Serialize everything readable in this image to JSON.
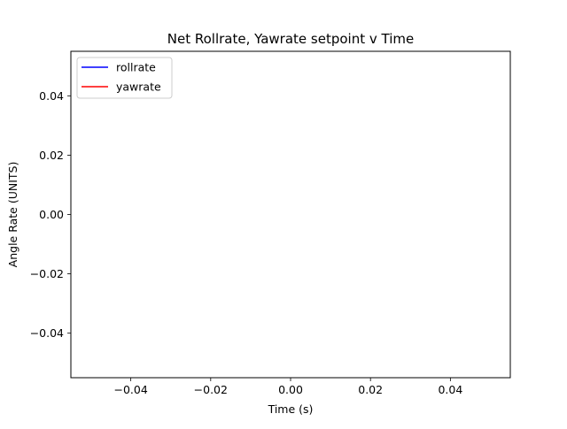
{
  "chart_data": {
    "type": "line",
    "title": "Net Rollrate, Yawrate setpoint v Time",
    "xlabel": "Time (s)",
    "ylabel": "Angle Rate (UNITS)",
    "xlim": [
      -0.055,
      0.055
    ],
    "ylim": [
      -0.055,
      0.055
    ],
    "xticks": [
      -0.04,
      -0.02,
      0.0,
      0.02,
      0.04
    ],
    "yticks": [
      -0.04,
      -0.02,
      0.0,
      0.02,
      0.04
    ],
    "xtick_labels": [
      "−0.04",
      "−0.02",
      "0.00",
      "0.02",
      "0.04"
    ],
    "ytick_labels": [
      "−0.04",
      "−0.02",
      "0.00",
      "0.02",
      "0.04"
    ],
    "grid": false,
    "legend_position": "upper-left",
    "series": [
      {
        "name": "rollrate",
        "color": "#0000ff",
        "x": [],
        "y": []
      },
      {
        "name": "yawrate",
        "color": "#ff0000",
        "x": [],
        "y": []
      }
    ]
  }
}
